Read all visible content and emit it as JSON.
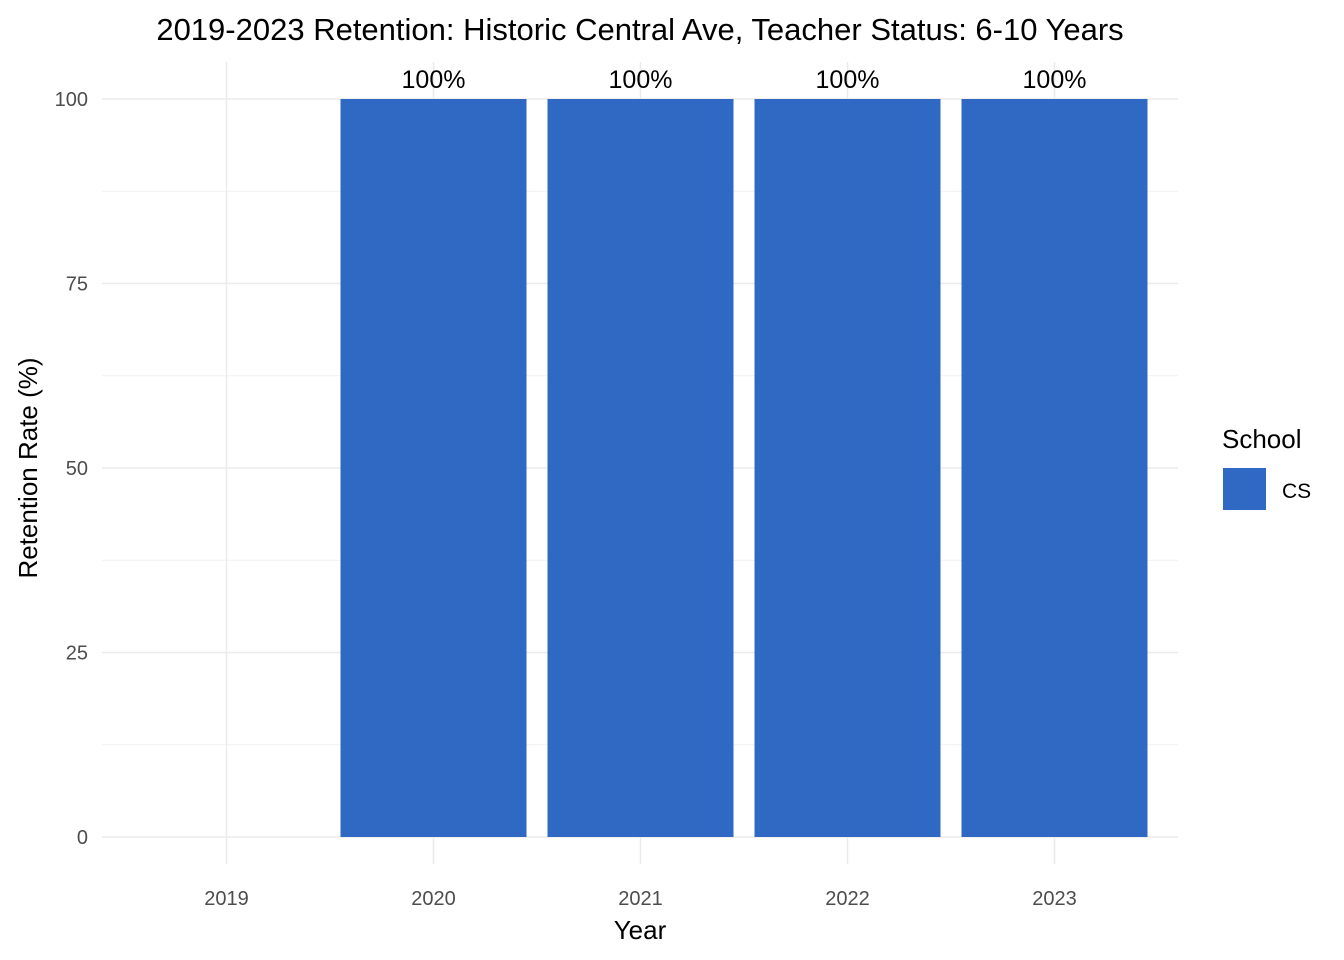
{
  "chart_data": {
    "type": "bar",
    "title": "2019-2023 Retention: Historic Central Ave, Teacher Status: 6-10 Years",
    "xlabel": "Year",
    "ylabel": "Retention Rate (%)",
    "categories": [
      "2019",
      "2020",
      "2021",
      "2022",
      "2023"
    ],
    "series": [
      {
        "name": "CS",
        "values": [
          null,
          100,
          100,
          100,
          100
        ],
        "labels": [
          "",
          "100%",
          "100%",
          "100%",
          "100%"
        ],
        "color": "#2f69c4"
      }
    ],
    "ylim": [
      0,
      100
    ],
    "yticks": [
      0,
      25,
      50,
      75,
      100
    ],
    "grid": true,
    "legend": {
      "title": "School",
      "position": "right"
    }
  }
}
